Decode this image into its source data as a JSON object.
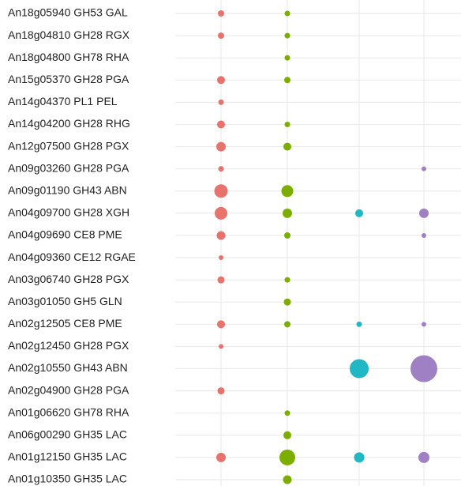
{
  "chart_data": {
    "type": "dot",
    "categories": [
      "An18g05940 GH53 GAL",
      "An18g04810 GH28 RGX",
      "An18g04800 GH78 RHA",
      "An15g05370 GH28 PGA",
      "An14g04370 PL1 PEL",
      "An14g04200 GH28 RHG",
      "An12g07500 GH28 PGX",
      "An09g03260 GH28 PGA",
      "An09g01190 GH43 ABN",
      "An04g09700 GH28 XGH",
      "An04g09690 CE8 PME",
      "An04g09360 CE12 RGAE",
      "An03g06740 GH28 PGX",
      "An03g01050 GH5 GLN",
      "An02g12505 CE8 PME",
      "An02g12450 GH28 PGX",
      "An02g10550 GH43 ABN",
      "An02g04900 GH28 PGA",
      "An01g06620 GH78 RHA",
      "An06g00290 GH35 LAC",
      "An01g12150 GH35 LAC",
      "An01g10350 GH35 LAC"
    ],
    "series": [
      {
        "color": "#e8736c",
        "values": [
          4,
          4,
          null,
          5,
          3.5,
          5,
          6,
          3.5,
          8.5,
          8,
          5.5,
          3,
          4.5,
          null,
          5,
          3,
          null,
          4.5,
          null,
          null,
          6,
          null
        ]
      },
      {
        "color": "#7cae00",
        "values": [
          3.5,
          3.5,
          3.5,
          4,
          null,
          3.5,
          5,
          null,
          7.5,
          6,
          4,
          null,
          3.5,
          4.5,
          4,
          null,
          null,
          null,
          3.5,
          5,
          10,
          5.5
        ]
      },
      {
        "color": "#1fb8c4",
        "values": [
          null,
          null,
          null,
          null,
          null,
          null,
          null,
          null,
          null,
          5,
          null,
          null,
          null,
          null,
          3.5,
          null,
          12,
          null,
          null,
          null,
          6.5,
          null
        ]
      },
      {
        "color": "#a080c4",
        "values": [
          null,
          null,
          null,
          null,
          null,
          null,
          null,
          3,
          null,
          6,
          3,
          null,
          null,
          null,
          3,
          null,
          17,
          null,
          null,
          null,
          7,
          null
        ]
      }
    ],
    "grid": true
  }
}
